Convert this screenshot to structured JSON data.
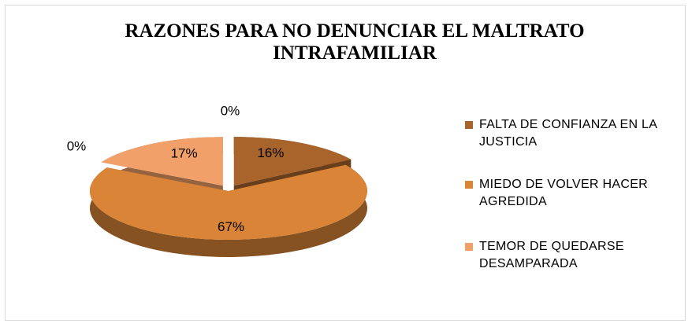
{
  "chart_data": {
    "type": "pie",
    "title": "RAZONES PARA NO DENUNCIAR EL MALTRATO INTRAFAMILIAR",
    "categories": [
      "FALTA DE CONFIANZA EN LA JUSTICIA",
      "MIEDO DE VOLVER HACER AGREDIDA",
      "TEMOR DE QUEDARSE DESAMPARADA",
      null,
      null
    ],
    "values": [
      16,
      67,
      17,
      0,
      0
    ],
    "value_labels": [
      "16%",
      "67%",
      "17%",
      "0%",
      "0%"
    ],
    "colors": [
      "#a9642c",
      "#d98436",
      "#f0a068",
      "#8a4a1c",
      "#b8702f"
    ],
    "legend": "right"
  }
}
